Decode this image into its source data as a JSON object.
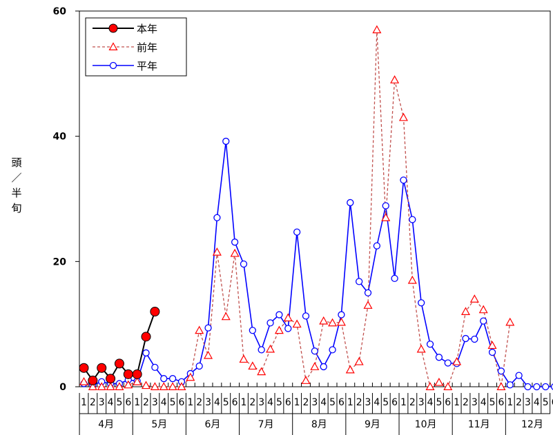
{
  "chart_data": {
    "type": "line",
    "ylabel": "頭／半旬",
    "ylabel_chars": [
      "頭",
      "／",
      "半",
      "旬"
    ],
    "ylim": [
      0,
      60
    ],
    "yticks": [
      0,
      20,
      40,
      60
    ],
    "legend_position": "top-left",
    "months": [
      "4月",
      "5月",
      "6月",
      "7月",
      "8月",
      "9月",
      "10月",
      "11月",
      "12月"
    ],
    "x_sublabels": [
      1,
      2,
      3,
      4,
      5,
      6,
      1,
      2,
      3,
      4,
      5,
      6,
      1,
      2,
      3,
      4,
      5,
      6,
      1,
      2,
      3,
      4,
      5,
      6,
      1,
      2,
      3,
      4,
      5,
      6,
      1,
      2,
      3,
      4,
      5,
      6,
      1,
      2,
      3,
      4,
      5,
      6,
      1,
      2,
      3,
      4,
      5,
      6,
      1,
      2,
      3,
      4,
      5,
      6
    ],
    "series": [
      {
        "name": "本年",
        "color": "#000000",
        "marker_color": "#ff0000",
        "values": [
          3,
          1,
          3,
          1.3,
          3.7,
          2,
          2,
          8,
          12
        ]
      },
      {
        "name": "前年",
        "color": "#c0504d",
        "marker_color": "#ff0000",
        "values": [
          0.8,
          0,
          0,
          0,
          0,
          0.3,
          0.8,
          0.2,
          0,
          0,
          0,
          0,
          1.5,
          9,
          5,
          21.5,
          11.2,
          21.3,
          4.4,
          3.3,
          2.4,
          6,
          9,
          11,
          10,
          1,
          3.2,
          10.5,
          10.2,
          10.3,
          2.7,
          4,
          13,
          57,
          27,
          49,
          43,
          17,
          6,
          0,
          0.7,
          0,
          4,
          12,
          14,
          12.3,
          6.6,
          0,
          10.3,
          null,
          null,
          null,
          null,
          null
        ]
      },
      {
        "name": "平年",
        "color": "#0000ff",
        "marker_color": "#0000ff",
        "values": [
          0.5,
          0.3,
          0.8,
          0.5,
          0.5,
          1.1,
          0.9,
          5.4,
          3.1,
          1.3,
          1.3,
          0.8,
          2.1,
          3.3,
          9.4,
          27,
          39.2,
          23.1,
          19.6,
          9,
          5.9,
          10.2,
          11.5,
          9.3,
          24.7,
          11.3,
          5.7,
          3.2,
          5.9,
          11.5,
          29.4,
          16.8,
          15,
          22.5,
          28.9,
          17.3,
          33,
          26.7,
          13.4,
          6.8,
          4.7,
          3.8,
          3.7,
          7.7,
          7.6,
          10.5,
          5.5,
          2.5,
          0.3,
          1.8,
          0,
          0,
          0,
          0
        ]
      }
    ]
  }
}
